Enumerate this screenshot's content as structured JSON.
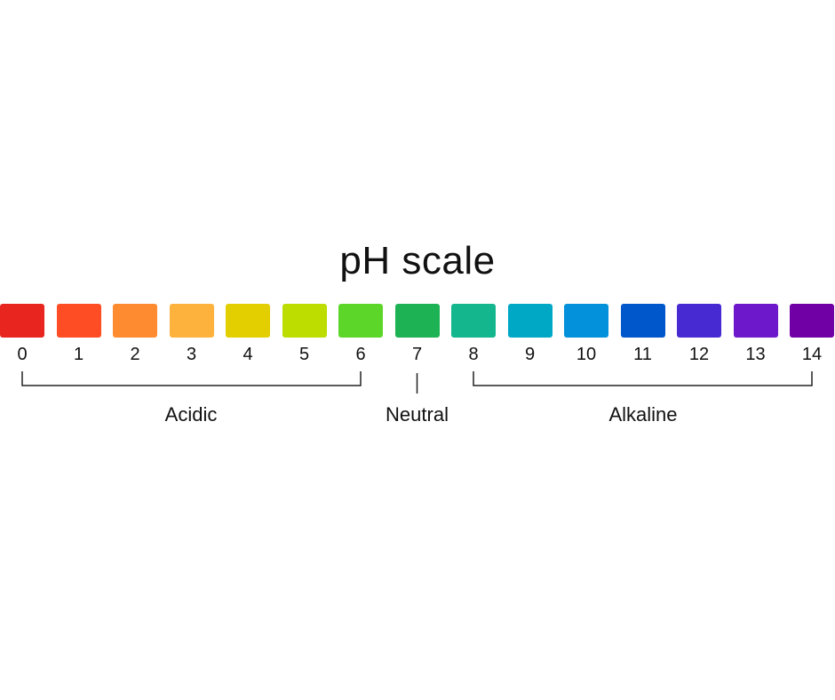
{
  "title": "pH scale",
  "scale": [
    {
      "value": "0",
      "color": "#e8261f"
    },
    {
      "value": "1",
      "color": "#fe4d25"
    },
    {
      "value": "2",
      "color": "#fe8b30"
    },
    {
      "value": "3",
      "color": "#feb23e"
    },
    {
      "value": "4",
      "color": "#e3cf00"
    },
    {
      "value": "5",
      "color": "#bddc00"
    },
    {
      "value": "6",
      "color": "#5dd62a"
    },
    {
      "value": "7",
      "color": "#1db253"
    },
    {
      "value": "8",
      "color": "#14b68d"
    },
    {
      "value": "9",
      "color": "#00a8c5"
    },
    {
      "value": "10",
      "color": "#0391db"
    },
    {
      "value": "11",
      "color": "#0057cc"
    },
    {
      "value": "12",
      "color": "#482ad2"
    },
    {
      "value": "13",
      "color": "#6e18cb"
    },
    {
      "value": "14",
      "color": "#7000a5"
    }
  ],
  "groups": [
    {
      "label": "Acidic",
      "from": 0,
      "to": 6
    },
    {
      "label": "Neutral",
      "from": 7,
      "to": 7
    },
    {
      "label": "Alkaline",
      "from": 8,
      "to": 14
    }
  ]
}
